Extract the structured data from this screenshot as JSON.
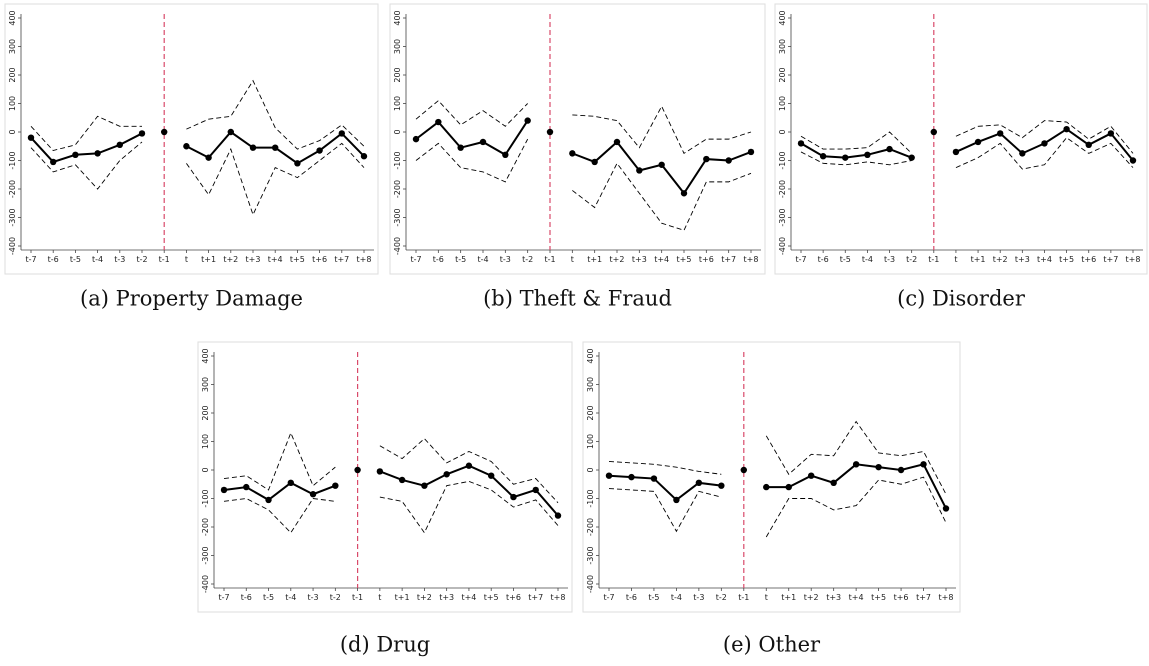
{
  "chart_data": [
    {
      "type": "line",
      "title": "(a) Property Damage",
      "categories": [
        "t-7",
        "t-6",
        "t-5",
        "t-4",
        "t-3",
        "t-2",
        "t-1",
        "t",
        "t+1",
        "t+2",
        "t+3",
        "t+4",
        "t+5",
        "t+6",
        "t+7",
        "t+8"
      ],
      "ylim": [
        -400,
        400
      ],
      "yticks": [
        -400,
        -300,
        -200,
        -100,
        0,
        100,
        200,
        300,
        400
      ],
      "vline": "t-1",
      "vline_color": "#d94a6a",
      "series": [
        {
          "color": "#000000",
          "dash": false,
          "markers": true,
          "values": [
            -20,
            -105,
            -80,
            -75,
            -45,
            -5,
            0,
            -50,
            -90,
            0,
            -55,
            -55,
            -110,
            -65,
            -5,
            -85
          ]
        },
        {
          "color": "#000000",
          "dash": true,
          "markers": false,
          "values": [
            20,
            -65,
            -45,
            55,
            20,
            20,
            null,
            10,
            45,
            55,
            180,
            15,
            -60,
            -30,
            25,
            -50
          ]
        },
        {
          "color": "#000000",
          "dash": true,
          "markers": false,
          "values": [
            -55,
            -140,
            -115,
            -200,
            -100,
            -35,
            null,
            -110,
            -220,
            -60,
            -290,
            -125,
            -160,
            -100,
            -40,
            -125
          ]
        }
      ]
    },
    {
      "type": "line",
      "title": "(b) Theft & Fraud",
      "categories": [
        "t-7",
        "t-6",
        "t-5",
        "t-4",
        "t-3",
        "t-2",
        "t-1",
        "t",
        "t+1",
        "t+2",
        "t+3",
        "t+4",
        "t+5",
        "t+6",
        "t+7",
        "t+8"
      ],
      "ylim": [
        -400,
        400
      ],
      "yticks": [
        -400,
        -300,
        -200,
        -100,
        0,
        100,
        200,
        300,
        400
      ],
      "vline": "t-1",
      "vline_color": "#d94a6a",
      "series": [
        {
          "color": "#000000",
          "dash": false,
          "markers": true,
          "values": [
            -25,
            35,
            -55,
            -35,
            -80,
            40,
            0,
            -75,
            -105,
            -35,
            -135,
            -115,
            -215,
            -95,
            -100,
            -70
          ]
        },
        {
          "color": "#000000",
          "dash": true,
          "markers": false,
          "values": [
            45,
            110,
            25,
            75,
            20,
            100,
            null,
            60,
            55,
            40,
            -55,
            90,
            -75,
            -25,
            -25,
            0
          ]
        },
        {
          "color": "#000000",
          "dash": true,
          "markers": false,
          "values": [
            -100,
            -40,
            -125,
            -140,
            -175,
            -25,
            null,
            -205,
            -265,
            -110,
            -215,
            -320,
            -345,
            -175,
            -175,
            -145
          ]
        }
      ]
    },
    {
      "type": "line",
      "title": "(c) Disorder",
      "categories": [
        "t-7",
        "t-6",
        "t-5",
        "t-4",
        "t-3",
        "t-2",
        "t-1",
        "t",
        "t+1",
        "t+2",
        "t+3",
        "t+4",
        "t+5",
        "t+6",
        "t+7",
        "t+8"
      ],
      "ylim": [
        -400,
        400
      ],
      "yticks": [
        -400,
        -300,
        -200,
        -100,
        0,
        100,
        200,
        300,
        400
      ],
      "vline": "t-1",
      "vline_color": "#d94a6a",
      "series": [
        {
          "color": "#000000",
          "dash": false,
          "markers": true,
          "values": [
            -40,
            -85,
            -90,
            -80,
            -60,
            -90,
            0,
            -70,
            -35,
            -5,
            -75,
            -40,
            10,
            -45,
            -5,
            -100
          ]
        },
        {
          "color": "#000000",
          "dash": true,
          "markers": false,
          "values": [
            -15,
            -60,
            -60,
            -55,
            0,
            -75,
            null,
            -15,
            20,
            25,
            -20,
            40,
            35,
            -25,
            20,
            -75
          ]
        },
        {
          "color": "#000000",
          "dash": true,
          "markers": false,
          "values": [
            -70,
            -110,
            -115,
            -105,
            -115,
            -100,
            null,
            -125,
            -90,
            -40,
            -130,
            -115,
            -20,
            -75,
            -40,
            -125
          ]
        }
      ]
    },
    {
      "type": "line",
      "title": "(d) Drug",
      "categories": [
        "t-7",
        "t-6",
        "t-5",
        "t-4",
        "t-3",
        "t-2",
        "t-1",
        "t",
        "t+1",
        "t+2",
        "t+3",
        "t+4",
        "t+5",
        "t+6",
        "t+7",
        "t+8"
      ],
      "ylim": [
        -400,
        400
      ],
      "yticks": [
        -400,
        -300,
        -200,
        -100,
        0,
        100,
        200,
        300,
        400
      ],
      "vline": "t-1",
      "vline_color": "#d94a6a",
      "series": [
        {
          "color": "#000000",
          "dash": false,
          "markers": true,
          "values": [
            -70,
            -60,
            -105,
            -45,
            -85,
            -55,
            0,
            -5,
            -35,
            -55,
            -15,
            15,
            -20,
            -95,
            -70,
            -160
          ]
        },
        {
          "color": "#000000",
          "dash": true,
          "markers": false,
          "values": [
            -30,
            -20,
            -70,
            130,
            -55,
            10,
            null,
            85,
            40,
            110,
            25,
            65,
            30,
            -50,
            -30,
            -115
          ]
        },
        {
          "color": "#000000",
          "dash": true,
          "markers": false,
          "values": [
            -110,
            -100,
            -140,
            -220,
            -100,
            -110,
            null,
            -95,
            -110,
            -220,
            -55,
            -40,
            -70,
            -130,
            -105,
            -195
          ]
        }
      ]
    },
    {
      "type": "line",
      "title": "(e) Other",
      "categories": [
        "t-7",
        "t-6",
        "t-5",
        "t-4",
        "t-3",
        "t-2",
        "t-1",
        "t",
        "t+1",
        "t+2",
        "t+3",
        "t+4",
        "t+5",
        "t+6",
        "t+7",
        "t+8"
      ],
      "ylim": [
        -400,
        400
      ],
      "yticks": [
        -400,
        -300,
        -200,
        -100,
        0,
        100,
        200,
        300,
        400
      ],
      "vline": "t-1",
      "vline_color": "#d94a6a",
      "series": [
        {
          "color": "#000000",
          "dash": false,
          "markers": true,
          "values": [
            -20,
            -25,
            -30,
            -105,
            -45,
            -55,
            0,
            -60,
            -60,
            -20,
            -45,
            20,
            10,
            0,
            20,
            -135
          ]
        },
        {
          "color": "#000000",
          "dash": true,
          "markers": false,
          "values": [
            30,
            25,
            20,
            10,
            -5,
            -15,
            null,
            120,
            -15,
            55,
            50,
            170,
            60,
            50,
            65,
            -85
          ]
        },
        {
          "color": "#000000",
          "dash": true,
          "markers": false,
          "values": [
            -65,
            -70,
            -75,
            -215,
            -75,
            -95,
            null,
            -235,
            -100,
            -100,
            -140,
            -125,
            -35,
            -50,
            -25,
            -185
          ]
        }
      ]
    }
  ]
}
